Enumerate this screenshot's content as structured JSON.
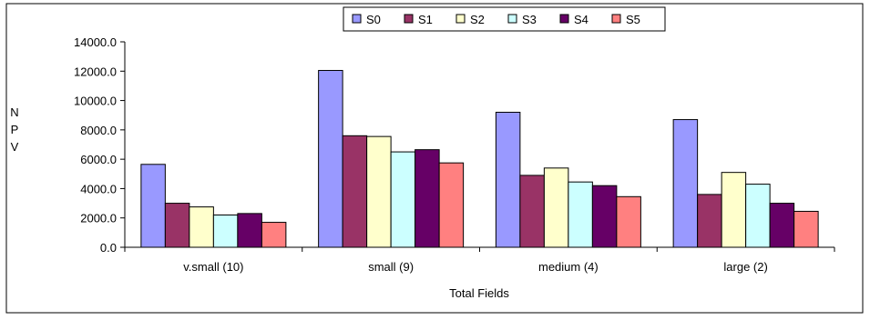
{
  "chart_data": {
    "type": "bar",
    "title": "",
    "xlabel": "Total Fields",
    "ylabel": "NPV",
    "ylim": [
      0,
      14000
    ],
    "yticks": [
      0,
      2000,
      4000,
      6000,
      8000,
      10000,
      12000,
      14000
    ],
    "ytick_labels": [
      "0.0",
      "2000.0",
      "4000.0",
      "6000.0",
      "8000.0",
      "10000.0",
      "12000.0",
      "14000.0"
    ],
    "grid": false,
    "legend_position": "top",
    "categories": [
      "v.small (10)",
      "small (9)",
      "medium (4)",
      "large (2)"
    ],
    "series": [
      {
        "name": "S0",
        "color": "#9999ff",
        "values": [
          5650,
          12050,
          9200,
          8700
        ]
      },
      {
        "name": "S1",
        "color": "#993366",
        "values": [
          3000,
          7600,
          4900,
          3600
        ]
      },
      {
        "name": "S2",
        "color": "#ffffcc",
        "values": [
          2750,
          7550,
          5400,
          5100
        ]
      },
      {
        "name": "S3",
        "color": "#ccffff",
        "values": [
          2200,
          6500,
          4450,
          4300
        ]
      },
      {
        "name": "S4",
        "color": "#660066",
        "values": [
          2300,
          6650,
          4200,
          3000
        ]
      },
      {
        "name": "S5",
        "color": "#ff8080",
        "values": [
          1700,
          5750,
          3450,
          2450
        ]
      }
    ]
  }
}
